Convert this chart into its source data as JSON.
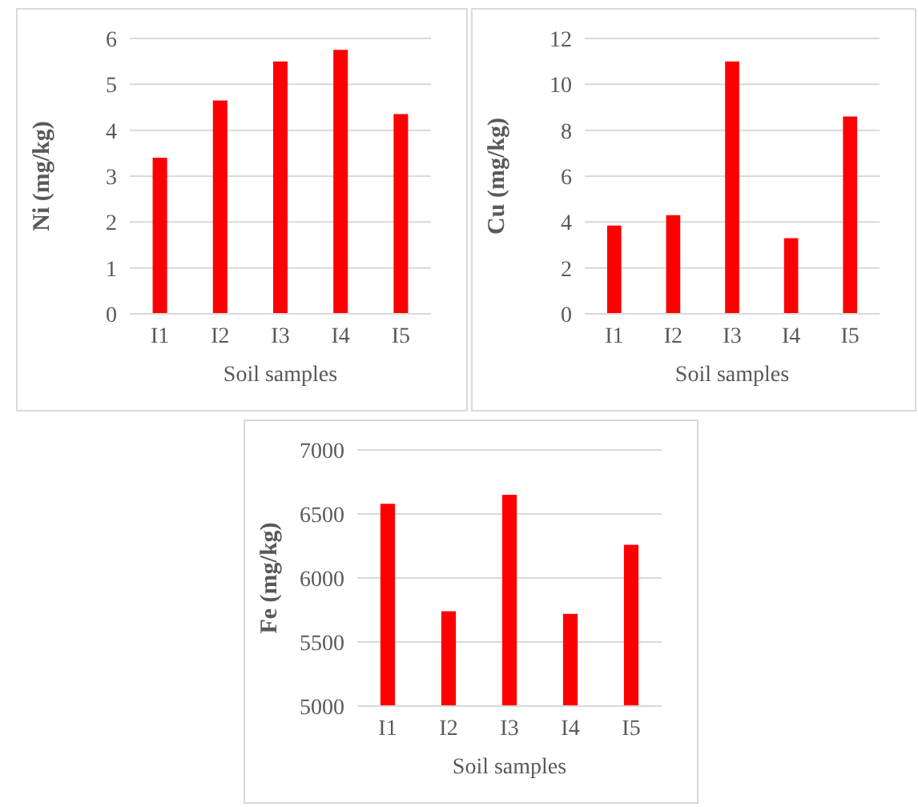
{
  "chart_data": [
    {
      "type": "bar",
      "xlabel": "Soil samples",
      "ylabel": "Ni (mg/kg)",
      "categories": [
        "I1",
        "I2",
        "I3",
        "I4",
        "I5"
      ],
      "values": [
        3.4,
        4.65,
        5.5,
        5.75,
        4.35
      ],
      "color": "#ff0000",
      "ylim": [
        0,
        6
      ],
      "yticks": [
        0,
        1,
        2,
        3,
        4,
        5,
        6
      ],
      "grid": "y"
    },
    {
      "type": "bar",
      "xlabel": "Soil samples",
      "ylabel": "Cu (mg/kg)",
      "categories": [
        "I1",
        "I2",
        "I3",
        "I4",
        "I5"
      ],
      "values": [
        3.85,
        4.3,
        11,
        3.3,
        8.6
      ],
      "color": "#ff0000",
      "ylim": [
        0,
        12
      ],
      "yticks": [
        0,
        2,
        4,
        6,
        8,
        10,
        12
      ],
      "grid": "y"
    },
    {
      "type": "bar",
      "xlabel": "Soil samples",
      "ylabel": "Fe (mg/kg)",
      "categories": [
        "I1",
        "I2",
        "I3",
        "I4",
        "I5"
      ],
      "values": [
        6580,
        5740,
        6650,
        5720,
        6260
      ],
      "color": "#ff0000",
      "ylim": [
        5000,
        7000
      ],
      "yticks": [
        5000,
        5500,
        6000,
        6500,
        7000
      ],
      "grid": "y"
    }
  ]
}
